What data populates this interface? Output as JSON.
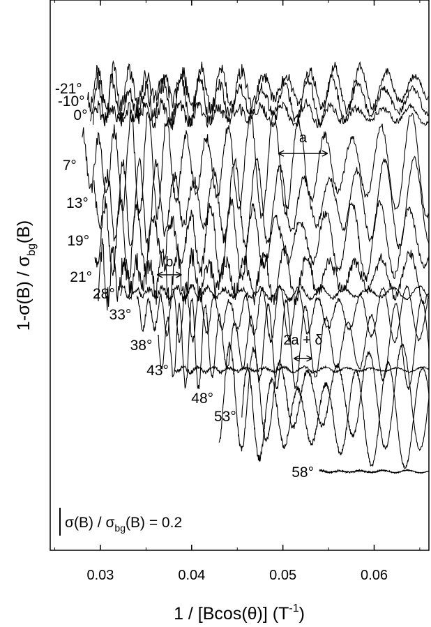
{
  "chart_data": {
    "type": "line",
    "xlabel": "1 / [Bcos(θ)] (T",
    "xlabel_sup": "-1",
    "xlabel_close": ")",
    "ylabel_pre": "1-σ(B) / σ",
    "ylabel_sub": "bg",
    "ylabel_post": "(B)",
    "xlim": [
      0.0245,
      0.066
    ],
    "xticks": [
      {
        "value": 0.03,
        "label": "0.03"
      },
      {
        "value": 0.04,
        "label": "0.04"
      },
      {
        "value": 0.05,
        "label": "0.05"
      },
      {
        "value": 0.06,
        "label": "0.06"
      }
    ],
    "series": [
      {
        "name": "-21°",
        "x_start": 0.0286,
        "baseline": 0.63,
        "amplitude": 0.16,
        "period_start": 0.0016,
        "period_end": 0.0032,
        "noise": 0.05,
        "label_row": 0
      },
      {
        "name": "-10°",
        "x_start": 0.0289,
        "baseline": 0.72,
        "amplitude": 0.16,
        "period_start": 0.0016,
        "period_end": 0.0032,
        "noise": 0.05,
        "label_row": 1
      },
      {
        "name": "0°",
        "x_start": 0.0292,
        "baseline": 0.82,
        "amplitude": 0.08,
        "period_start": 0.0016,
        "period_end": 0.0032,
        "noise": 0.04,
        "label_row": 2
      },
      {
        "name": "7°",
        "x_start": 0.028,
        "baseline": 1.18,
        "amplitude": 0.38,
        "period_start": 0.0016,
        "period_end": 0.0035,
        "noise": 0.04,
        "label_row": 3
      },
      {
        "name": "13°",
        "x_start": 0.0293,
        "baseline": 1.45,
        "amplitude": 0.32,
        "period_start": 0.0016,
        "period_end": 0.0034,
        "noise": 0.04,
        "label_row": 4
      },
      {
        "name": "19°",
        "x_start": 0.0294,
        "baseline": 1.72,
        "amplitude": 0.28,
        "period_start": 0.0016,
        "period_end": 0.0034,
        "noise": 0.05,
        "label_row": 5
      },
      {
        "name": "21°",
        "x_start": 0.0297,
        "baseline": 1.98,
        "amplitude": 0.18,
        "period_start": 0.0011,
        "period_end": 0.0033,
        "noise": 0.07,
        "label_row": 6
      },
      {
        "name": "28°",
        "x_start": 0.0322,
        "baseline": 2.1,
        "amplitude": 0.05,
        "period_start": 0.0013,
        "period_end": 0.003,
        "noise": 0.02,
        "label_row": 7
      },
      {
        "name": "33°",
        "x_start": 0.034,
        "baseline": 2.25,
        "amplitude": 0.2,
        "period_start": 0.0012,
        "period_end": 0.0028,
        "noise": 0.02,
        "label_row": 8
      },
      {
        "name": "38°",
        "x_start": 0.0363,
        "baseline": 2.47,
        "amplitude": 0.32,
        "period_start": 0.0012,
        "period_end": 0.003,
        "noise": 0.02,
        "label_row": 9
      },
      {
        "name": "43°",
        "x_start": 0.0381,
        "baseline": 2.65,
        "amplitude": 0.02,
        "period_start": 0.0015,
        "period_end": 0.003,
        "noise": 0.01,
        "label_row": 10
      },
      {
        "name": "48°",
        "x_start": 0.043,
        "baseline": 2.85,
        "amplitude": 0.38,
        "period_start": 0.0025,
        "period_end": 0.004,
        "noise": 0.02,
        "label_row": 11
      },
      {
        "name": "53°",
        "x_start": 0.0455,
        "baseline": 2.98,
        "amplitude": 0.38,
        "period_start": 0.0025,
        "period_end": 0.004,
        "noise": 0.02,
        "label_row": 12
      },
      {
        "name": "58°",
        "x_start": 0.054,
        "baseline": 3.38,
        "amplitude": 0.01,
        "period_start": 0.002,
        "period_end": 0.003,
        "noise": 0.005,
        "label_row": 13
      }
    ],
    "annotations": [
      {
        "text": "a",
        "x_from": 0.0495,
        "x_to": 0.0549,
        "y": 1.1,
        "text_y": 1.02
      },
      {
        "text": "b",
        "x_from": 0.0362,
        "x_to": 0.0389,
        "y": 1.97,
        "text_y": 1.91
      },
      {
        "text": "2a + δ",
        "x_from": 0.0512,
        "x_to": 0.0532,
        "y": 2.57,
        "text_y": 2.47
      }
    ],
    "scale_bar": {
      "label": "σ(B) / σ",
      "label_sub": "bg",
      "label_post": "(B) = 0.2",
      "value": 0.2
    }
  }
}
